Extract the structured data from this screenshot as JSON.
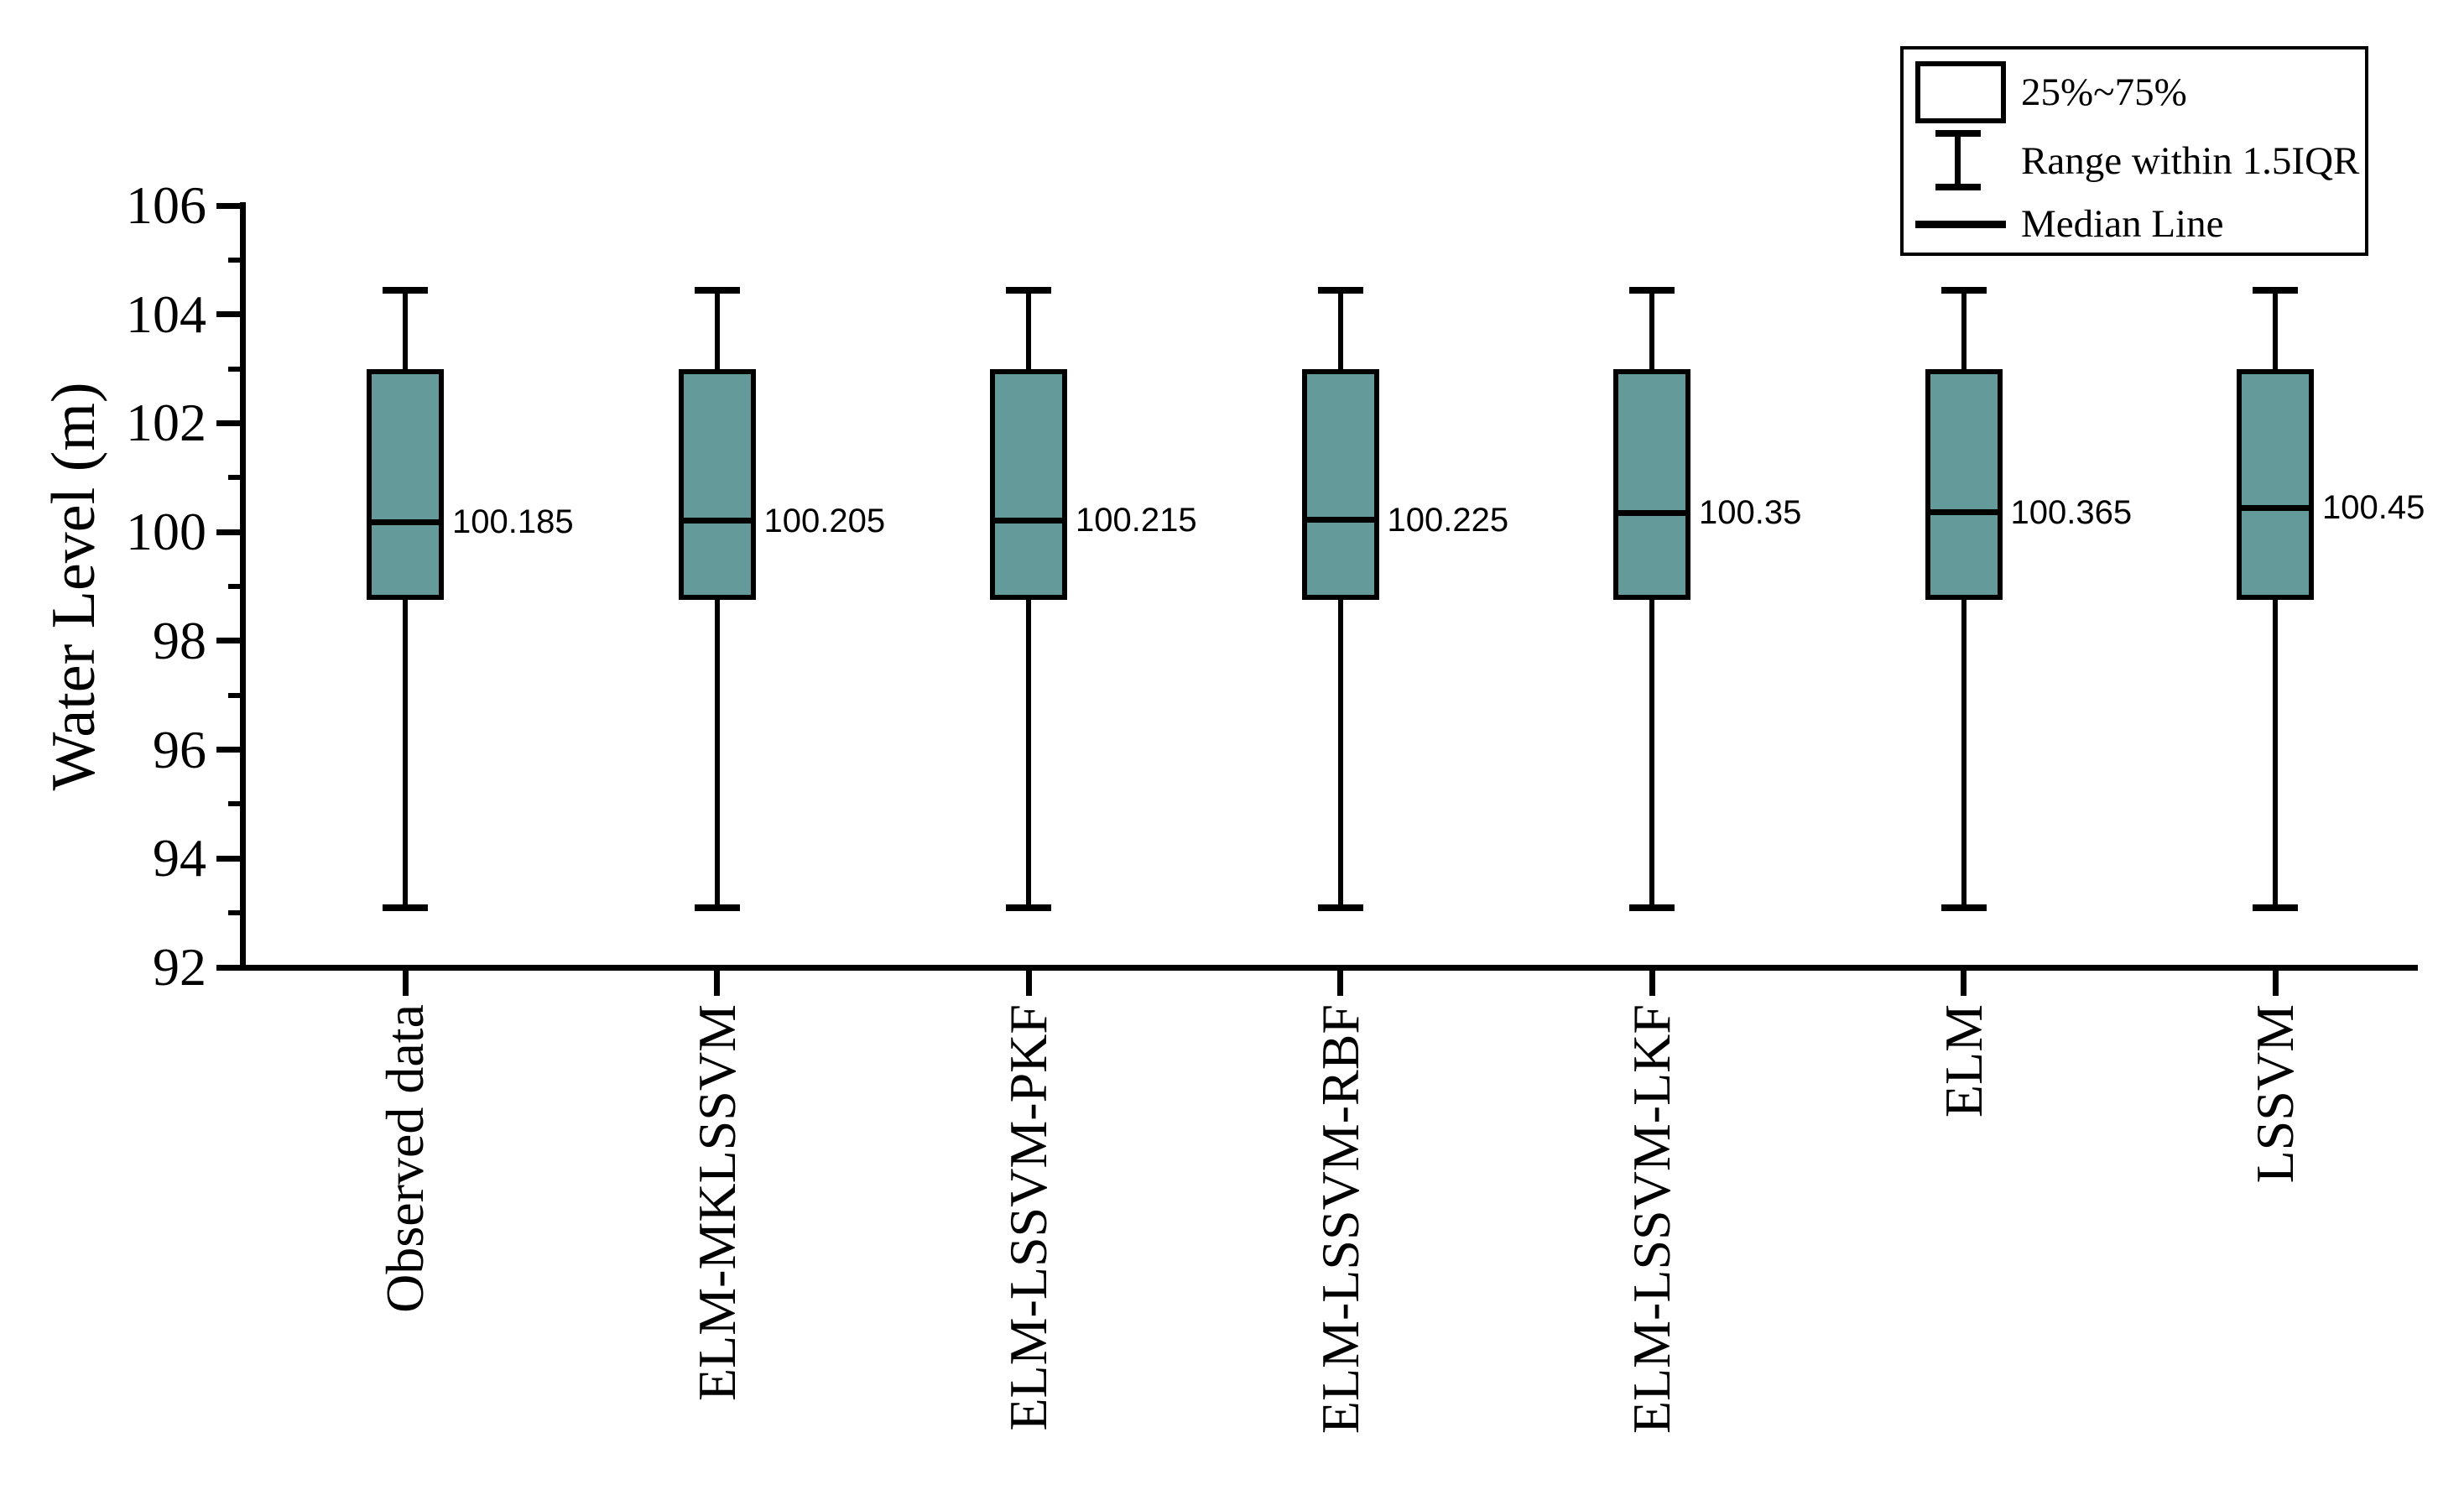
{
  "figure": {
    "y_axis_title": "Water Level (m)"
  },
  "legend": {
    "items": [
      {
        "symbol": "box-swatch",
        "label": "25%~75%"
      },
      {
        "symbol": "whisker-range",
        "label": "Range within 1.5IQR"
      },
      {
        "symbol": "median-line",
        "label": "Median Line"
      }
    ]
  },
  "colors": {
    "box_fill": "#649A99",
    "stroke": "#000000",
    "background": "#FFFFFF"
  },
  "chart_data": {
    "type": "box",
    "title": "",
    "xlabel": "",
    "ylabel": "Water Level (m)",
    "categories": [
      "Observed data",
      "ELM-MKLSSVM",
      "ELM-LSSVM-PKF",
      "ELM-LSSVM-RBF",
      "ELM-LSSVM-LKF",
      "ELM",
      "LSSVM"
    ],
    "y_axis": {
      "min": 92,
      "max": 106,
      "major_tick_step": 2,
      "minor_tick_step": 1,
      "major_ticks": [
        92,
        94,
        96,
        98,
        100,
        102,
        104,
        106
      ]
    },
    "series": [
      {
        "name": "Observed data",
        "median": 100.185,
        "median_label": "100.185",
        "q1": 98.75,
        "q3": 103,
        "whisker_low": 93.1,
        "whisker_high": 104.45
      },
      {
        "name": "ELM-MKLSSVM",
        "median": 100.205,
        "median_label": "100.205",
        "q1": 98.75,
        "q3": 103,
        "whisker_low": 93.1,
        "whisker_high": 104.45
      },
      {
        "name": "ELM-LSSVM-PKF",
        "median": 100.215,
        "median_label": "100.215",
        "q1": 98.75,
        "q3": 103,
        "whisker_low": 93.1,
        "whisker_high": 104.45
      },
      {
        "name": "ELM-LSSVM-RBF",
        "median": 100.225,
        "median_label": "100.225",
        "q1": 98.75,
        "q3": 103,
        "whisker_low": 93.1,
        "whisker_high": 104.45
      },
      {
        "name": "ELM-LSSVM-LKF",
        "median": 100.35,
        "median_label": "100.35",
        "q1": 98.75,
        "q3": 103,
        "whisker_low": 93.1,
        "whisker_high": 104.45
      },
      {
        "name": "ELM",
        "median": 100.365,
        "median_label": "100.365",
        "q1": 98.75,
        "q3": 103,
        "whisker_low": 93.1,
        "whisker_high": 104.45
      },
      {
        "name": "LSSVM",
        "median": 100.45,
        "median_label": "100.45",
        "q1": 98.75,
        "q3": 103,
        "whisker_low": 93.1,
        "whisker_high": 104.45
      }
    ],
    "legend_position": "top-right",
    "grid": false
  }
}
